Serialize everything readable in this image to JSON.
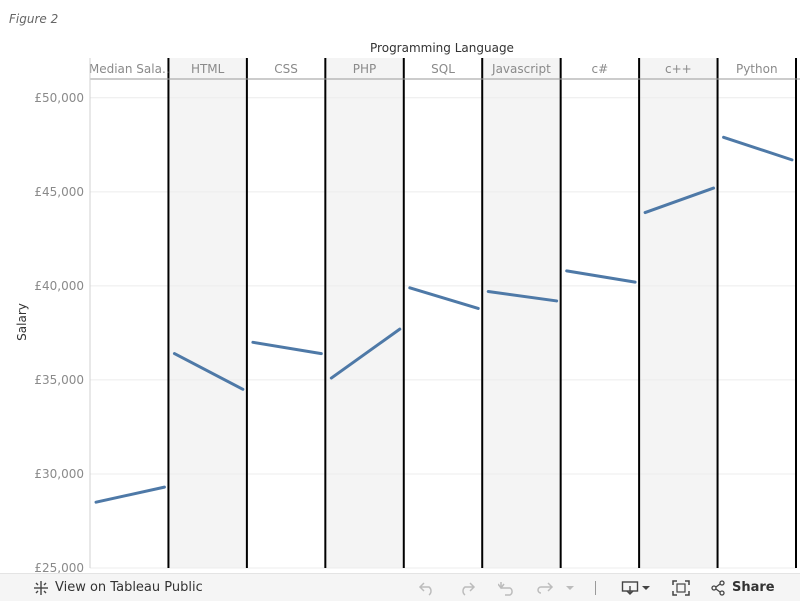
{
  "page": {
    "figure_caption": "Figure 2"
  },
  "chart_data": {
    "type": "line",
    "title": "Programming Language",
    "ylabel": "Salary",
    "ylim": [
      25000,
      51000
    ],
    "y_ticks": [
      25000,
      30000,
      35000,
      40000,
      45000,
      50000
    ],
    "y_tick_labels": [
      "£25,000",
      "£30,000",
      "£35,000",
      "£40,000",
      "£45,000",
      "£50,000"
    ],
    "categories": [
      "Median Sala..",
      "HTML",
      "CSS",
      "PHP",
      "SQL",
      "Javascript",
      "c#",
      "c++",
      "Python"
    ],
    "shaded_panels": [
      false,
      true,
      false,
      true,
      false,
      true,
      false,
      true,
      false
    ],
    "series": [
      {
        "color": "#4e79a7",
        "values": [
          [
            28500,
            29300
          ],
          [
            36400,
            34500
          ],
          [
            37000,
            36400
          ],
          [
            35100,
            37700
          ],
          [
            39900,
            38800
          ],
          [
            39700,
            39200
          ],
          [
            40800,
            40200
          ],
          [
            43900,
            45200
          ],
          [
            47900,
            46700
          ]
        ]
      }
    ],
    "grid": true,
    "colors": {
      "line": "#4e79a7",
      "shaded_panel": "#f4f4f4",
      "panel_divider": "#000000",
      "gridline": "#ececec"
    }
  },
  "toolbar": {
    "view_label": "View on Tableau Public",
    "share_label": "Share",
    "icons": {
      "view": "tableau-logo-icon",
      "undo": "undo-icon",
      "redo": "redo-icon",
      "revert": "revert-icon",
      "refresh": "refresh-icon",
      "refresh_menu": "chevron-down-icon",
      "download": "download-icon",
      "download_menu": "chevron-down-icon",
      "fullscreen": "fullscreen-icon",
      "share": "share-icon"
    }
  }
}
